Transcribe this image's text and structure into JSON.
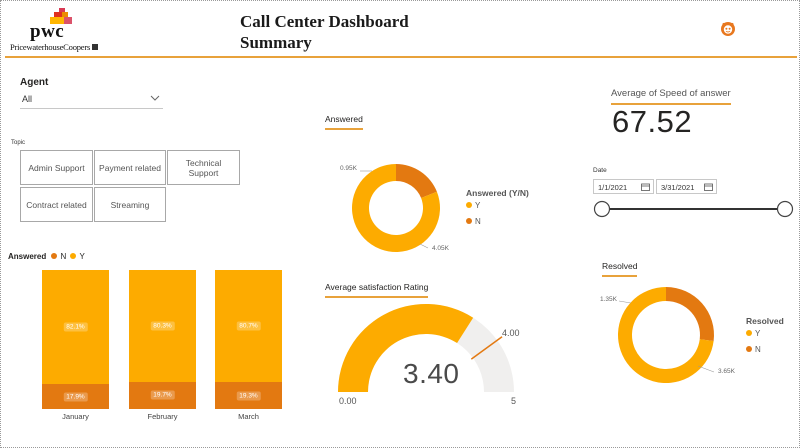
{
  "header": {
    "logo_text": "pwc",
    "logo_subtext": "PricewaterhouseCoopers",
    "title_line1": "Call Center Dashboard",
    "title_line2": "Summary",
    "corner_icon": "bot-face-icon"
  },
  "colors": {
    "accent": "#e8a23b",
    "y_color": "#fdab00",
    "n_color": "#e37911",
    "track": "#f0efee"
  },
  "agent_slicer": {
    "label": "Agent",
    "value": "All"
  },
  "topic_slicer": {
    "label": "Topic",
    "tiles": [
      "Admin Support",
      "Payment related",
      "Technical Support",
      "Contract related",
      "Streaming"
    ]
  },
  "answered_donut": {
    "title": "Answered",
    "legend_title": "Answered (Y/N)",
    "legend": [
      "Y",
      "N"
    ],
    "labels": {
      "n": "0.95K",
      "y": "4.05K"
    }
  },
  "speed_card": {
    "title": "Average of Speed of answer",
    "value": "67.52"
  },
  "date_slicer": {
    "label": "Date",
    "start": "1/1/2021",
    "end": "3/31/2021"
  },
  "bar_chart_legend": {
    "title": "Answered",
    "n": "N",
    "y": "Y"
  },
  "chart_data": [
    {
      "type": "bar",
      "stacked": true,
      "categories": [
        "January",
        "February",
        "March"
      ],
      "series": [
        {
          "name": "Y",
          "values": [
            82.1,
            80.3,
            80.7
          ],
          "labels": [
            "82.1%",
            "80.3%",
            "80.7%"
          ]
        },
        {
          "name": "N",
          "values": [
            17.9,
            19.7,
            19.3
          ],
          "labels": [
            "17.9%",
            "19.7%",
            "19.3%"
          ]
        }
      ],
      "title": "Answered",
      "ylim": [
        0,
        100
      ]
    },
    {
      "type": "pie",
      "donut": true,
      "title": "Answered",
      "categories": [
        "Y",
        "N"
      ],
      "values": [
        4050,
        950
      ],
      "labels": [
        "4.05K",
        "0.95K"
      ]
    },
    {
      "type": "pie",
      "donut": true,
      "title": "Resolved",
      "categories": [
        "Y",
        "N"
      ],
      "values": [
        3650,
        1350
      ],
      "labels": [
        "3.65K",
        "1.35K"
      ]
    }
  ],
  "gauge": {
    "title": "Average satisfaction Rating",
    "value": 3.4,
    "value_label": "3.40",
    "min": 0,
    "min_label": "0.00",
    "max": 5,
    "max_label": "5",
    "target": 4.0,
    "target_label": "4.00"
  },
  "resolved_donut": {
    "title": "Resolved",
    "legend_title": "Resolved",
    "legend": [
      "Y",
      "N"
    ],
    "labels": {
      "n": "1.35K",
      "y": "3.65K"
    }
  }
}
